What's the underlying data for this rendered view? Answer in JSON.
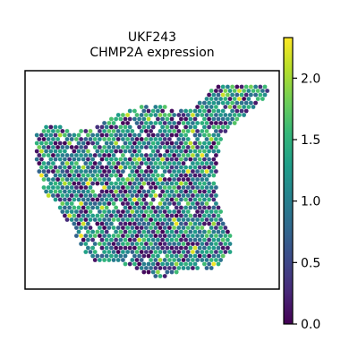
{
  "chart_data": {
    "type": "scatter",
    "title_lines": [
      "UKF243",
      "CHMP2A expression"
    ],
    "xlabel": "",
    "ylabel": "",
    "grid": false,
    "legend": "none",
    "colorbar": {
      "label": "",
      "range": [
        0.0,
        2.33
      ],
      "ticks": [
        0.0,
        0.5,
        1.0,
        1.5,
        2.0
      ],
      "tick_labels": [
        "0.0",
        "0.5",
        "1.0",
        "1.5",
        "2.0"
      ],
      "colormap": "viridis"
    },
    "spot_value_range": [
      0.0,
      2.33
    ]
  },
  "colors": {
    "viridis_stops": [
      "#440154",
      "#482878",
      "#3e4989",
      "#31688e",
      "#26828e",
      "#1f9e89",
      "#35b779",
      "#6ece58",
      "#b5de2b",
      "#fde725"
    ],
    "frame": "#000000"
  }
}
